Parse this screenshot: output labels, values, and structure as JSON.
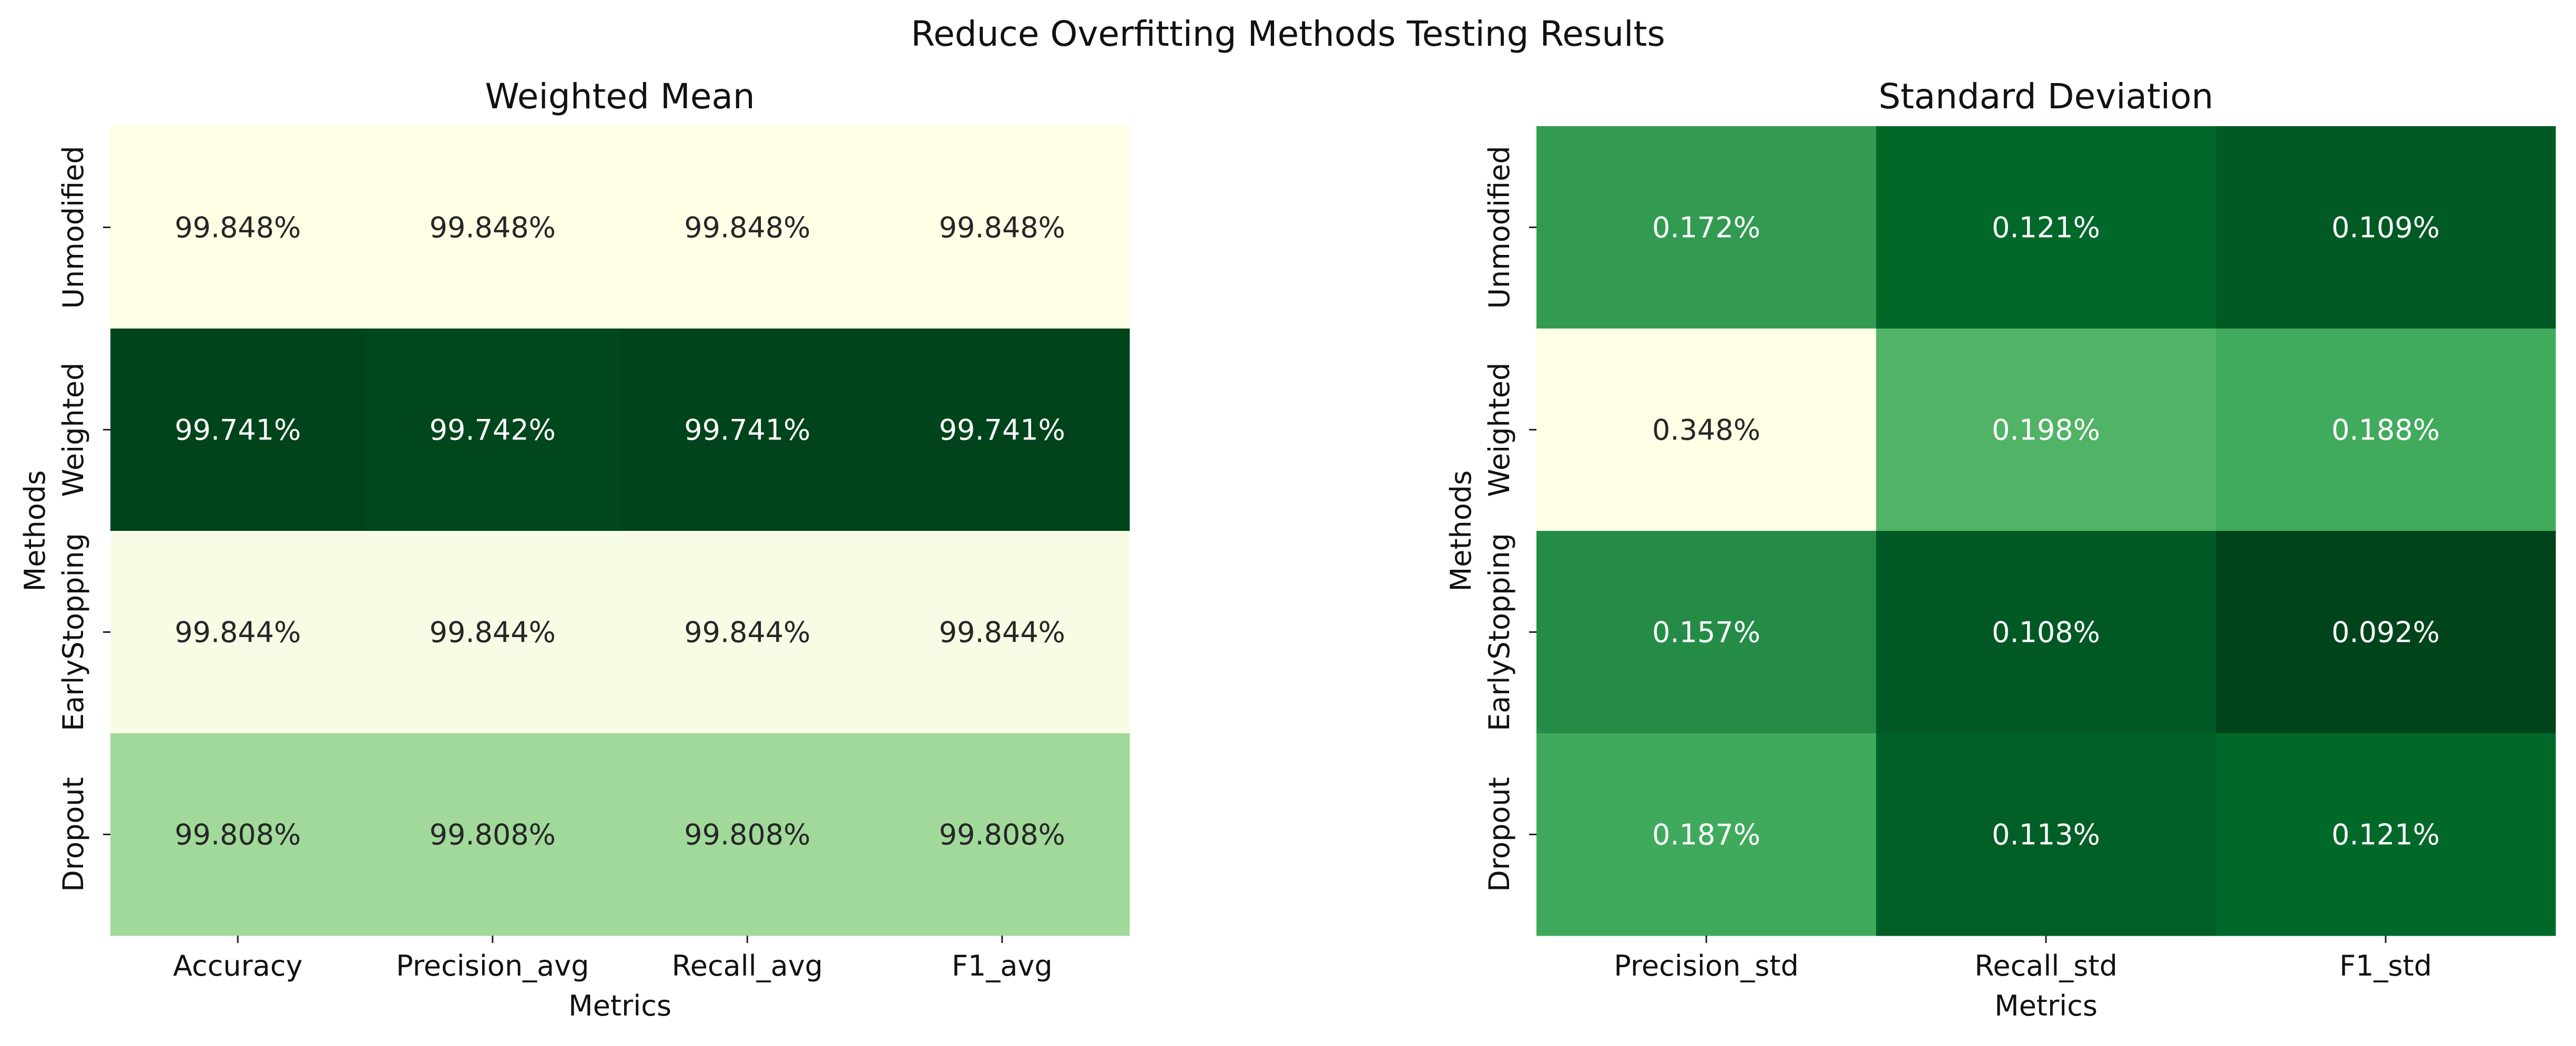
{
  "title": "Reduce Overfitting Methods Testing Results",
  "chart_data": [
    {
      "type": "heatmap",
      "title": "Weighted Mean",
      "xlabel": "Metrics",
      "ylabel": "Methods",
      "columns": [
        "Accuracy",
        "Precision_avg",
        "Recall_avg",
        "F1_avg"
      ],
      "rows": [
        "Unmodified",
        "Weighted",
        "EarlyStopping",
        "Dropout"
      ],
      "values": [
        [
          99.848,
          99.848,
          99.848,
          99.848
        ],
        [
          99.741,
          99.742,
          99.741,
          99.741
        ],
        [
          99.844,
          99.844,
          99.844,
          99.844
        ],
        [
          99.808,
          99.808,
          99.808,
          99.808
        ]
      ],
      "labels": [
        [
          "99.848%",
          "99.848%",
          "99.848%",
          "99.848%"
        ],
        [
          "99.741%",
          "99.742%",
          "99.741%",
          "99.741%"
        ],
        [
          "99.844%",
          "99.844%",
          "99.844%",
          "99.844%"
        ],
        [
          "99.808%",
          "99.808%",
          "99.808%",
          "99.808%"
        ]
      ],
      "colormap": "Greens_reversed",
      "colorbar": false
    },
    {
      "type": "heatmap",
      "title": "Standard Deviation",
      "xlabel": "Metrics",
      "ylabel": "Methods",
      "columns": [
        "Precision_std",
        "Recall_std",
        "F1_std"
      ],
      "rows": [
        "Unmodified",
        "Weighted",
        "EarlyStopping",
        "Dropout"
      ],
      "values": [
        [
          0.172,
          0.121,
          0.109
        ],
        [
          0.348,
          0.198,
          0.188
        ],
        [
          0.157,
          0.108,
          0.092
        ],
        [
          0.187,
          0.113,
          0.121
        ]
      ],
      "labels": [
        [
          "0.172%",
          "0.121%",
          "0.109%"
        ],
        [
          "0.348%",
          "0.198%",
          "0.188%"
        ],
        [
          "0.157%",
          "0.108%",
          "0.092%"
        ],
        [
          "0.187%",
          "0.113%",
          "0.121%"
        ]
      ],
      "colormap": "Greens_reversed",
      "colorbar": false
    }
  ]
}
